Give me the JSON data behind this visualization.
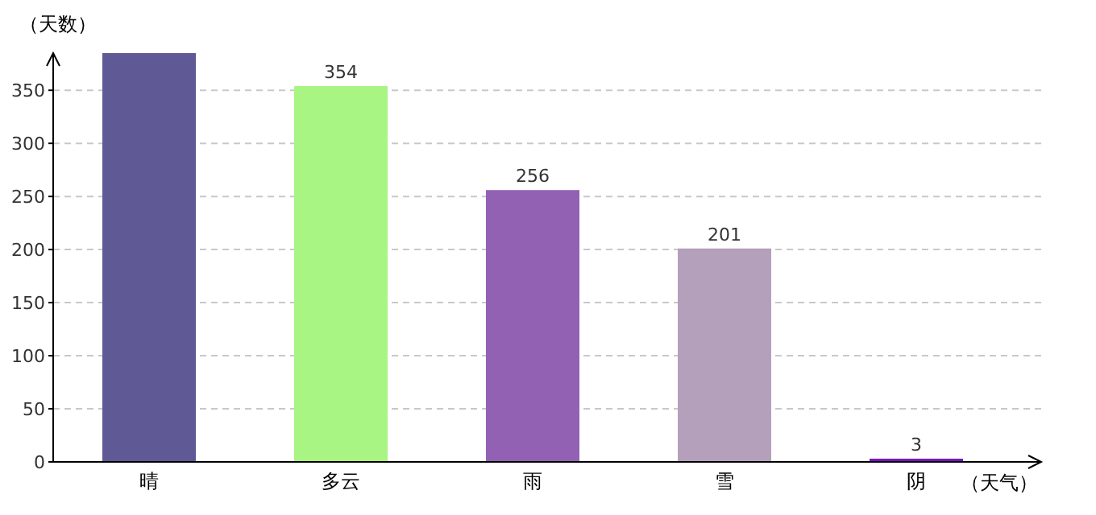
{
  "chart_data": {
    "type": "bar",
    "xlabel": "（天气）",
    "ylabel": "（天数）",
    "categories": [
      "晴",
      "多云",
      "雨",
      "雪",
      "阴"
    ],
    "values": [
      385,
      354,
      256,
      201,
      3
    ],
    "colors": [
      "#5f5a96",
      "#a8f584",
      "#9361b4",
      "#b4a0bb",
      "#7a10c4"
    ],
    "value_labels": [
      null,
      "354",
      "256",
      "201",
      "3"
    ],
    "ylim": [
      0,
      385
    ],
    "yticks": [
      0,
      50,
      100,
      150,
      200,
      250,
      300,
      350
    ],
    "grid": "y"
  }
}
